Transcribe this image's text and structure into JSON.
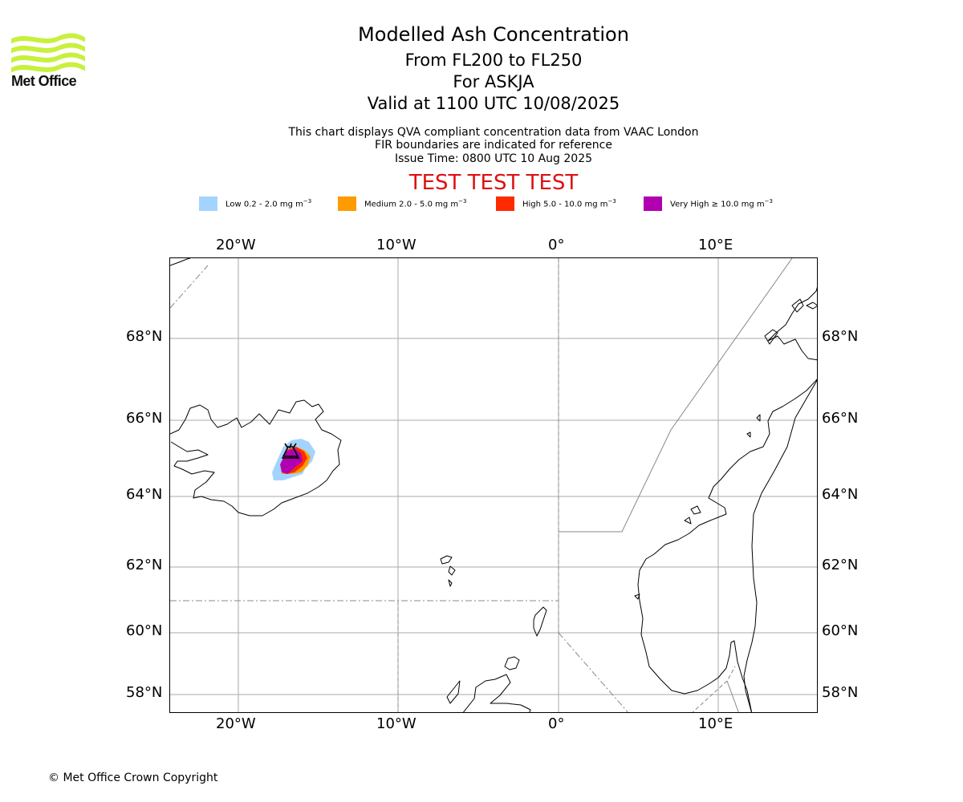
{
  "logo": {
    "text": "Met Office",
    "color": "#c8f03c"
  },
  "title": {
    "main": "Modelled Ash Concentration",
    "levels": "From FL200 to FL250",
    "volcano": "For ASKJA",
    "valid": "Valid at 1100 UTC 10/08/2025"
  },
  "info": {
    "line1": "This chart displays QVA compliant concentration data from VAAC London",
    "line2": "FIR boundaries are indicated for reference",
    "line3": "Issue Time: 0800 UTC 10 Aug 2025"
  },
  "test_banner": {
    "text": "TEST TEST TEST",
    "color": "#e01010"
  },
  "legend": [
    {
      "label": "Low 0.2 - 2.0 mg m",
      "exp": "−3",
      "color": "#a3d4ff"
    },
    {
      "label": "Medium 2.0 - 5.0 mg m",
      "exp": "−3",
      "color": "#ff9a00"
    },
    {
      "label": "High 5.0 - 10.0 mg m",
      "exp": "−3",
      "color": "#ff2a00"
    },
    {
      "label": "Very High  ≥  10.0 mg m",
      "exp": "−3",
      "color": "#b000b0"
    }
  ],
  "axes": {
    "lon_labels": [
      "20°W",
      "10°W",
      "0°",
      "10°E"
    ],
    "lat_labels": [
      "68°N",
      "66°N",
      "64°N",
      "62°N",
      "60°N",
      "58°N"
    ]
  },
  "map": {
    "volcano_name": "ASKJA",
    "ash_levels": [
      "Low",
      "Medium",
      "High",
      "Very High"
    ],
    "gridline_color": "#aaaaaa",
    "fir_color": "#888888"
  },
  "copyright": "© Met Office Crown Copyright"
}
